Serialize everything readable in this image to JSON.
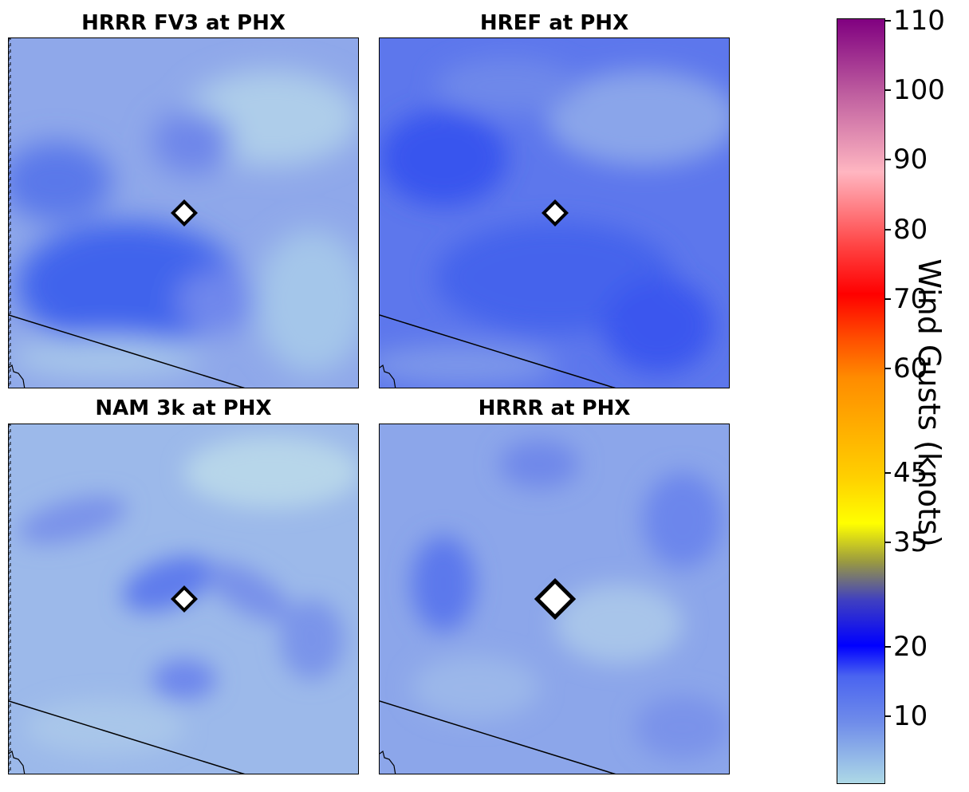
{
  "panels": [
    {
      "title": "HRRR FV3 at PHX"
    },
    {
      "title": "HREF at PHX"
    },
    {
      "title": "NAM 3k at PHX"
    },
    {
      "title": "HRRR at PHX"
    }
  ],
  "colorbar": {
    "label": "Wind Gusts (knots)",
    "ticks": [
      "10",
      "20",
      "35",
      "45",
      "60",
      "70",
      "80",
      "90",
      "100",
      "110"
    ],
    "colors": {
      "low": "#add8e6",
      "mid_blue": "#0000ff",
      "olive": "#9a9a40",
      "yellow": "#ffff00",
      "gold": "#ffd000",
      "orange": "#ff8c00",
      "red": "#ff0000",
      "pink": "#ffb6c1",
      "purple": "#800080"
    }
  },
  "marker": {
    "name": "station-marker-icon",
    "fill": "#ffffff",
    "stroke": "#000000"
  }
}
